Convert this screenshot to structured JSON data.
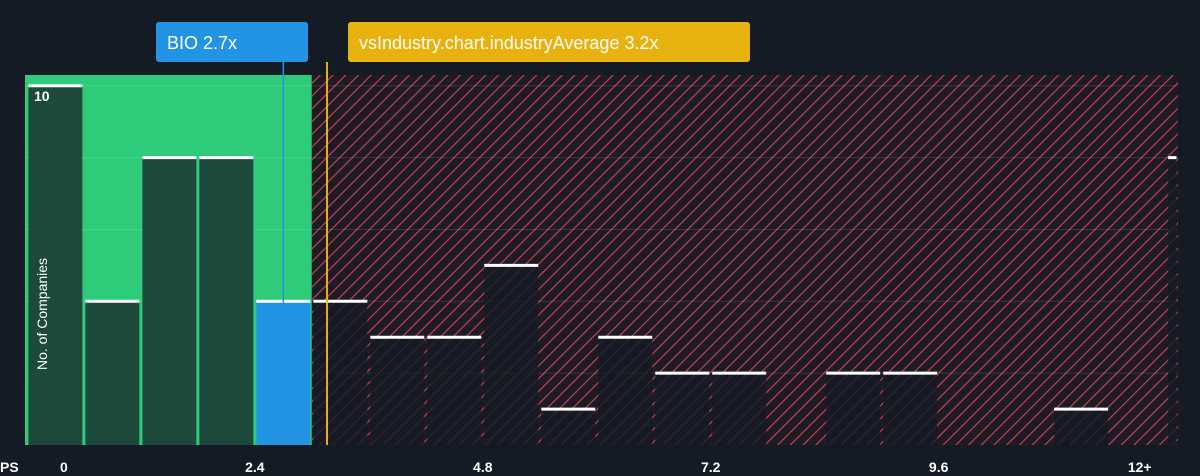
{
  "chart_data": {
    "type": "bar",
    "xlabel": "PS",
    "ylabel": "No. of Companies",
    "x_ticks": [
      "0",
      "2.4",
      "4.8",
      "7.2",
      "9.6",
      "12+"
    ],
    "x_tick_values": [
      0,
      2.4,
      4.8,
      7.2,
      9.6,
      12
    ],
    "y_ticks": [
      "10"
    ],
    "ylim": [
      0,
      10.3
    ],
    "xlim": [
      -0.02,
      12.12
    ],
    "bin_width": 0.6,
    "bins": [
      {
        "x0": 0.0,
        "value": 10
      },
      {
        "x0": 0.6,
        "value": 4
      },
      {
        "x0": 1.2,
        "value": 8
      },
      {
        "x0": 1.8,
        "value": 8
      },
      {
        "x0": 2.4,
        "value": 4,
        "highlight": true
      },
      {
        "x0": 3.0,
        "value": 4
      },
      {
        "x0": 3.6,
        "value": 3
      },
      {
        "x0": 4.2,
        "value": 3
      },
      {
        "x0": 4.8,
        "value": 5
      },
      {
        "x0": 5.4,
        "value": 1
      },
      {
        "x0": 6.0,
        "value": 3
      },
      {
        "x0": 6.6,
        "value": 2
      },
      {
        "x0": 7.2,
        "value": 2
      },
      {
        "x0": 8.4,
        "value": 2
      },
      {
        "x0": 9.0,
        "value": 2
      },
      {
        "x0": 10.8,
        "value": 1
      },
      {
        "x0": 12.0,
        "value": 8
      }
    ],
    "company": {
      "label": "BIO 2.7x",
      "value": 2.7
    },
    "industry_average": {
      "label": "vsIndustry.chart.industryAverage 3.2x",
      "value": 3.16
    },
    "fair_zone_end": 3.0,
    "grid": true,
    "colors": {
      "background": "#151b24",
      "fair_zone": "#2ecc7a",
      "bar_dark": "#1d4a3a",
      "overvalued_hatch": "#d9434e",
      "highlight_bar": "#2394e3",
      "company_callout": "#2394e3",
      "industry_callout": "#e8b20e",
      "bar_cap": "#ffffff"
    }
  }
}
